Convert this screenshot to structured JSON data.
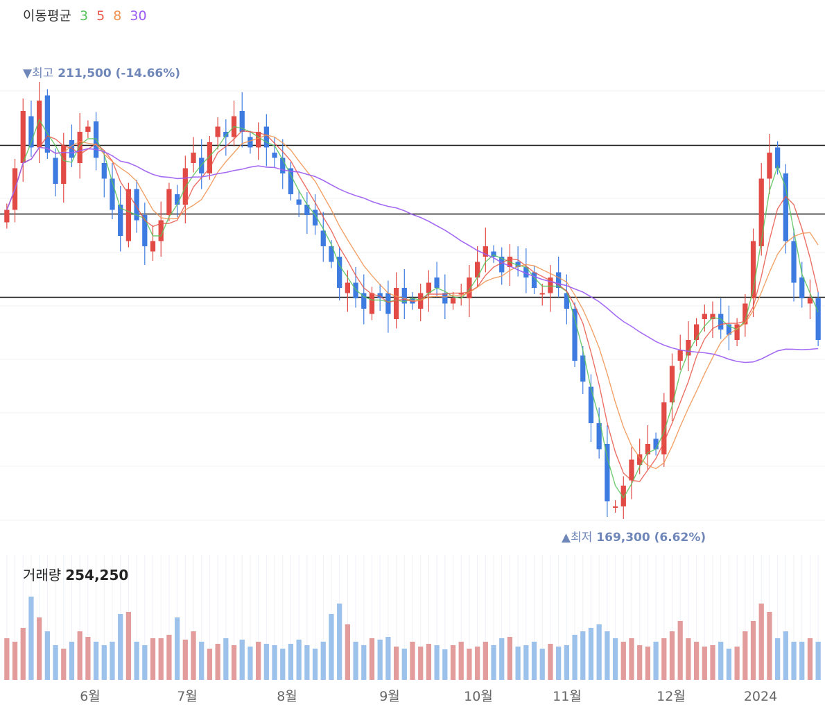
{
  "legend": {
    "title": "이동평균",
    "periods": [
      {
        "label": "3",
        "color": "#58c35a"
      },
      {
        "label": "5",
        "color": "#e8574a"
      },
      {
        "label": "8",
        "color": "#f0924f"
      },
      {
        "label": "30",
        "color": "#9b5cf2"
      }
    ]
  },
  "annotations": {
    "high": {
      "marker": "▼",
      "label": "최고",
      "value": "211,500 (-14.66%)"
    },
    "low": {
      "marker": "▲",
      "label": "최저",
      "value": "169,300 (6.62%)"
    }
  },
  "volume": {
    "title": "거래량",
    "value": "254,250"
  },
  "colors": {
    "up": "#e14a45",
    "down": "#3d7be0",
    "vol_up": "#e39c9c",
    "vol_down": "#9cc1ea",
    "ma3": "#58c35a",
    "ma5": "#e8574a",
    "ma8": "#f0924f",
    "ma30": "#9b5cf2",
    "grid": "#eef0f3",
    "hline": "#111111"
  },
  "chart_data": {
    "type": "candlestick",
    "x_tick_labels": [
      "6월",
      "7월",
      "8월",
      "9월",
      "10월",
      "11월",
      "12월",
      "2024"
    ],
    "price_range": [
      169300,
      211500
    ],
    "horizontal_reference_levels": [
      205200,
      198600,
      190600
    ],
    "moving_averages": [
      3,
      5,
      8,
      30
    ],
    "close_series": [
      199000,
      203000,
      208500,
      205000,
      209500,
      204500,
      201500,
      205200,
      204000,
      206500,
      207000,
      204000,
      202000,
      199000,
      196500,
      201000,
      198000,
      195500,
      196000,
      198000,
      201000,
      199500,
      203000,
      204500,
      202500,
      205500,
      207000,
      206000,
      208000,
      206500,
      205000,
      206500,
      205000,
      204000,
      202500,
      200500,
      199500,
      198500,
      197500,
      195500,
      194000,
      191500,
      192000,
      190500,
      189500,
      191000,
      190500,
      189000,
      191500,
      190000,
      190000,
      191000,
      192000,
      191500,
      190000,
      190500,
      191000,
      192500,
      194000,
      195500,
      194500,
      193000,
      194500,
      193500,
      192500,
      191500,
      191000,
      192500,
      191500,
      189500,
      184500,
      182500,
      178500,
      176000,
      171000,
      170500,
      172500,
      175000,
      175500,
      176500,
      176000,
      180500,
      184000,
      185500,
      186500,
      188000,
      189000,
      189000,
      187500,
      187000,
      188000,
      190000,
      196000,
      202000,
      204500,
      203000,
      196000,
      192000,
      190500,
      190500,
      186500
    ],
    "volume_series": [
      60,
      55,
      75,
      120,
      90,
      70,
      50,
      45,
      55,
      70,
      62,
      55,
      50,
      55,
      95,
      98,
      55,
      50,
      60,
      60,
      65,
      90,
      58,
      70,
      55,
      45,
      52,
      60,
      50,
      58,
      48,
      55,
      52,
      50,
      45,
      52,
      58,
      50,
      45,
      55,
      95,
      110,
      80,
      55,
      50,
      60,
      58,
      62,
      48,
      45,
      55,
      48,
      52,
      50,
      44,
      50,
      55,
      45,
      48,
      55,
      50,
      60,
      62,
      48,
      50,
      55,
      45,
      52,
      48,
      50,
      65,
      70,
      75,
      80,
      70,
      60,
      55,
      60,
      50,
      48,
      55,
      60,
      70,
      85,
      60,
      55,
      48,
      50,
      55,
      45,
      48,
      70,
      85,
      110,
      98,
      60,
      70,
      55,
      55,
      60,
      55
    ]
  }
}
